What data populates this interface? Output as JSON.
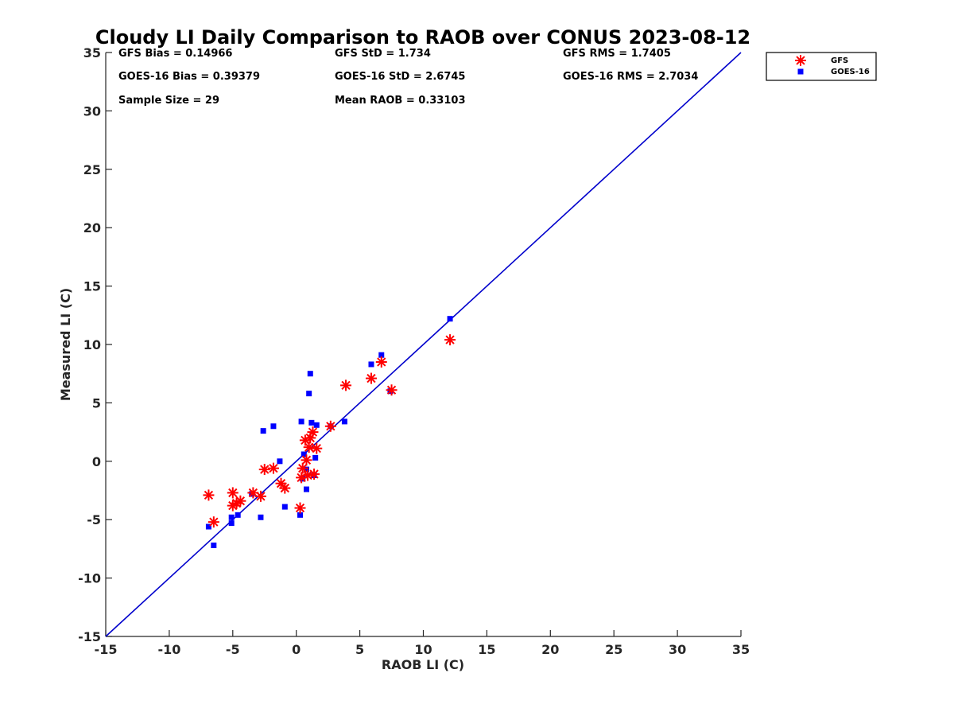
{
  "chart_data": {
    "type": "scatter",
    "title": "Cloudy LI Daily Comparison to RAOB over CONUS 2023-08-12",
    "xlabel": "RAOB LI (C)",
    "ylabel": "Measured LI (C)",
    "xlim": [
      -15,
      35
    ],
    "ylim": [
      -15,
      35
    ],
    "xticks": [
      "-15",
      "-10",
      "-5",
      "0",
      "5",
      "10",
      "15",
      "20",
      "25",
      "30",
      "35"
    ],
    "yticks": [
      "-15",
      "-10",
      "-5",
      "0",
      "5",
      "10",
      "15",
      "20",
      "25",
      "30",
      "35"
    ],
    "grid": false,
    "legend_position": "outside top-right",
    "reference_line": {
      "from": [
        -15,
        -15
      ],
      "to": [
        35,
        35
      ],
      "color": "#0000cc"
    },
    "stats": [
      [
        "GFS Bias = 0.14966",
        "GFS StD = 1.734",
        "GFS RMS = 1.7405"
      ],
      [
        "GOES-16 Bias = 0.39379",
        "GOES-16 StD = 2.6745",
        "GOES-16 RMS = 2.7034"
      ],
      [
        "Sample Size = 29",
        "Mean RAOB = 0.33103",
        ""
      ]
    ],
    "series": [
      {
        "name": "GFS",
        "marker": "asterisk",
        "color": "#ff0000",
        "points": [
          [
            -6.9,
            -2.9
          ],
          [
            -6.5,
            -5.2
          ],
          [
            -5.0,
            -2.7
          ],
          [
            -5.0,
            -3.8
          ],
          [
            -4.7,
            -3.6
          ],
          [
            -4.4,
            -3.4
          ],
          [
            -3.4,
            -2.7
          ],
          [
            -2.8,
            -3.0
          ],
          [
            -2.5,
            -0.7
          ],
          [
            -1.8,
            -0.6
          ],
          [
            -1.2,
            -1.9
          ],
          [
            -0.9,
            -2.3
          ],
          [
            0.3,
            -4.0
          ],
          [
            0.4,
            -1.4
          ],
          [
            0.5,
            -0.6
          ],
          [
            0.7,
            1.8
          ],
          [
            0.8,
            0.1
          ],
          [
            0.9,
            -1.2
          ],
          [
            1.0,
            1.2
          ],
          [
            1.1,
            2.0
          ],
          [
            1.3,
            2.5
          ],
          [
            1.4,
            -1.1
          ],
          [
            1.6,
            1.1
          ],
          [
            2.7,
            3.0
          ],
          [
            3.9,
            6.5
          ],
          [
            5.9,
            7.1
          ],
          [
            6.7,
            8.5
          ],
          [
            7.5,
            6.1
          ],
          [
            12.1,
            10.4
          ]
        ]
      },
      {
        "name": "GOES-16",
        "marker": "square",
        "color": "#0000ff",
        "points": [
          [
            -6.9,
            -5.6
          ],
          [
            -6.5,
            -7.2
          ],
          [
            -5.1,
            -4.8
          ],
          [
            -5.1,
            -5.3
          ],
          [
            -4.6,
            -4.6
          ],
          [
            -3.5,
            -2.8
          ],
          [
            -2.8,
            -4.8
          ],
          [
            -2.6,
            2.6
          ],
          [
            -1.8,
            3.0
          ],
          [
            -1.3,
            0.0
          ],
          [
            -0.9,
            -3.9
          ],
          [
            0.3,
            -4.6
          ],
          [
            0.4,
            3.4
          ],
          [
            0.5,
            -1.5
          ],
          [
            0.6,
            0.6
          ],
          [
            0.8,
            -0.7
          ],
          [
            0.8,
            -2.4
          ],
          [
            1.0,
            5.8
          ],
          [
            1.1,
            7.5
          ],
          [
            1.2,
            3.3
          ],
          [
            1.4,
            -1.2
          ],
          [
            1.5,
            0.3
          ],
          [
            1.6,
            3.1
          ],
          [
            2.7,
            3.0
          ],
          [
            3.8,
            3.4
          ],
          [
            5.9,
            8.3
          ],
          [
            6.7,
            9.1
          ],
          [
            7.4,
            6.0
          ],
          [
            12.1,
            12.2
          ]
        ]
      }
    ]
  }
}
